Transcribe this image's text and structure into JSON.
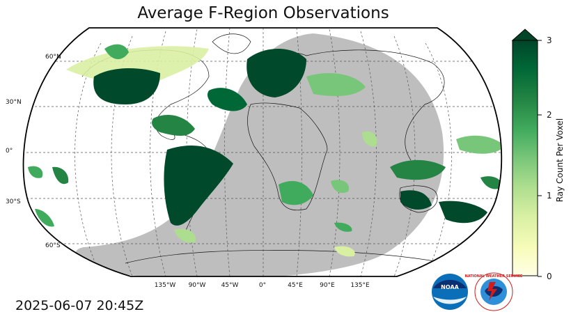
{
  "title": "Average F-Region Observations",
  "timestamp": "2025-06-07 20:45Z",
  "latitude_labels": [
    "60°N",
    "30°N",
    "0°",
    "30°S",
    "60°S"
  ],
  "longitude_labels": [
    "135°W",
    "90°W",
    "45°W",
    "0°",
    "45°E",
    "90°E",
    "135°E"
  ],
  "colorbar": {
    "label": "Ray Count Per Voxel",
    "ticks": [
      "0",
      "1",
      "2",
      "3"
    ],
    "min": 0,
    "max": 3,
    "colors": [
      "#ffffe5",
      "#f7fcb9",
      "#d9f0a3",
      "#addd8e",
      "#78c679",
      "#41ab5d",
      "#238443",
      "#006837",
      "#004529"
    ],
    "extend": "max"
  },
  "colors": {
    "night_shade": "#bebebe",
    "high_density": "#00492a"
  },
  "logos": {
    "noaa": "NOAA",
    "nws": "NATIONAL WEATHER SERVICE"
  }
}
